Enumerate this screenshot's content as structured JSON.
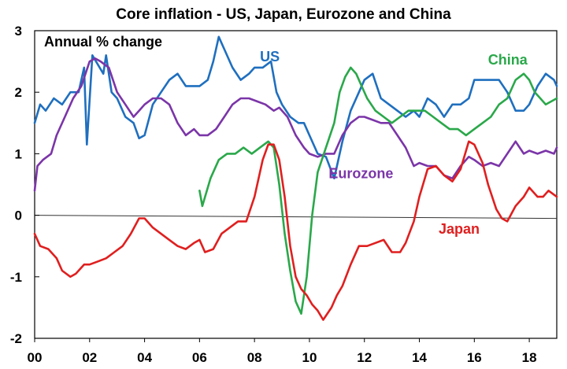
{
  "chart_data": {
    "type": "line",
    "title": "Core inflation - US, Japan, Eurozone and China",
    "ylabel": "Annual % change",
    "xlim": [
      2000,
      2019
    ],
    "ylim": [
      -2,
      3
    ],
    "x_ticks": [
      {
        "v": 2000,
        "label": "00"
      },
      {
        "v": 2002,
        "label": "02"
      },
      {
        "v": 2004,
        "label": "04"
      },
      {
        "v": 2006,
        "label": "06"
      },
      {
        "v": 2008,
        "label": "08"
      },
      {
        "v": 2010,
        "label": "10"
      },
      {
        "v": 2012,
        "label": "12"
      },
      {
        "v": 2014,
        "label": "14"
      },
      {
        "v": 2016,
        "label": "16"
      },
      {
        "v": 2018,
        "label": "18"
      }
    ],
    "y_ticks": [
      -2,
      -1,
      0,
      1,
      2,
      3
    ],
    "grid": false,
    "zero_line": true,
    "legend": "inline labels",
    "series": [
      {
        "name": "US",
        "color": "#1f6fbf",
        "label_at": [
          2008.2,
          2.5
        ],
        "points": [
          [
            2000.0,
            1.5
          ],
          [
            2000.2,
            1.8
          ],
          [
            2000.4,
            1.7
          ],
          [
            2000.7,
            1.9
          ],
          [
            2001.0,
            1.8
          ],
          [
            2001.3,
            2.0
          ],
          [
            2001.6,
            2.0
          ],
          [
            2001.8,
            2.4
          ],
          [
            2001.9,
            1.15
          ],
          [
            2002.1,
            2.6
          ],
          [
            2002.5,
            2.3
          ],
          [
            2002.6,
            2.6
          ],
          [
            2002.8,
            2.0
          ],
          [
            2003.0,
            1.9
          ],
          [
            2003.3,
            1.6
          ],
          [
            2003.6,
            1.5
          ],
          [
            2003.8,
            1.25
          ],
          [
            2004.0,
            1.3
          ],
          [
            2004.3,
            1.8
          ],
          [
            2004.6,
            2.0
          ],
          [
            2004.9,
            2.2
          ],
          [
            2005.2,
            2.3
          ],
          [
            2005.5,
            2.1
          ],
          [
            2005.8,
            2.1
          ],
          [
            2006.0,
            2.1
          ],
          [
            2006.3,
            2.2
          ],
          [
            2006.5,
            2.5
          ],
          [
            2006.7,
            2.9
          ],
          [
            2006.9,
            2.7
          ],
          [
            2007.2,
            2.4
          ],
          [
            2007.5,
            2.2
          ],
          [
            2007.8,
            2.3
          ],
          [
            2008.0,
            2.4
          ],
          [
            2008.3,
            2.4
          ],
          [
            2008.6,
            2.5
          ],
          [
            2008.8,
            2.0
          ],
          [
            2009.0,
            1.8
          ],
          [
            2009.3,
            1.6
          ],
          [
            2009.6,
            1.5
          ],
          [
            2009.8,
            1.5
          ],
          [
            2010.0,
            1.3
          ],
          [
            2010.3,
            1.0
          ],
          [
            2010.6,
            0.95
          ],
          [
            2010.9,
            0.6
          ],
          [
            2011.2,
            1.2
          ],
          [
            2011.5,
            1.7
          ],
          [
            2011.8,
            2.0
          ],
          [
            2012.0,
            2.2
          ],
          [
            2012.3,
            2.3
          ],
          [
            2012.6,
            1.9
          ],
          [
            2012.9,
            1.8
          ],
          [
            2013.2,
            1.7
          ],
          [
            2013.5,
            1.6
          ],
          [
            2013.8,
            1.7
          ],
          [
            2014.0,
            1.6
          ],
          [
            2014.3,
            1.9
          ],
          [
            2014.6,
            1.8
          ],
          [
            2014.9,
            1.6
          ],
          [
            2015.2,
            1.8
          ],
          [
            2015.5,
            1.8
          ],
          [
            2015.8,
            1.9
          ],
          [
            2016.0,
            2.2
          ],
          [
            2016.3,
            2.2
          ],
          [
            2016.6,
            2.2
          ],
          [
            2016.9,
            2.2
          ],
          [
            2017.2,
            2.0
          ],
          [
            2017.5,
            1.7
          ],
          [
            2017.8,
            1.7
          ],
          [
            2018.0,
            1.8
          ],
          [
            2018.3,
            2.1
          ],
          [
            2018.6,
            2.3
          ],
          [
            2018.9,
            2.2
          ],
          [
            2019.0,
            2.1
          ]
        ]
      },
      {
        "name": "Eurozone",
        "color": "#7b35a8",
        "label_at": [
          2010.7,
          0.6
        ],
        "points": [
          [
            2000.0,
            0.4
          ],
          [
            2000.1,
            0.8
          ],
          [
            2000.3,
            0.9
          ],
          [
            2000.6,
            1.0
          ],
          [
            2000.8,
            1.3
          ],
          [
            2001.1,
            1.6
          ],
          [
            2001.4,
            1.9
          ],
          [
            2001.7,
            2.1
          ],
          [
            2002.0,
            2.5
          ],
          [
            2002.2,
            2.55
          ],
          [
            2002.4,
            2.5
          ],
          [
            2002.7,
            2.4
          ],
          [
            2003.0,
            2.0
          ],
          [
            2003.3,
            1.8
          ],
          [
            2003.6,
            1.6
          ],
          [
            2003.8,
            1.7
          ],
          [
            2004.0,
            1.8
          ],
          [
            2004.3,
            1.9
          ],
          [
            2004.6,
            1.9
          ],
          [
            2004.9,
            1.8
          ],
          [
            2005.2,
            1.5
          ],
          [
            2005.5,
            1.3
          ],
          [
            2005.8,
            1.4
          ],
          [
            2006.0,
            1.3
          ],
          [
            2006.3,
            1.3
          ],
          [
            2006.6,
            1.4
          ],
          [
            2006.9,
            1.6
          ],
          [
            2007.2,
            1.8
          ],
          [
            2007.5,
            1.9
          ],
          [
            2007.8,
            1.9
          ],
          [
            2008.1,
            1.85
          ],
          [
            2008.4,
            1.8
          ],
          [
            2008.7,
            1.7
          ],
          [
            2008.9,
            1.75
          ],
          [
            2009.2,
            1.6
          ],
          [
            2009.5,
            1.3
          ],
          [
            2009.8,
            1.1
          ],
          [
            2010.0,
            1.0
          ],
          [
            2010.3,
            0.95
          ],
          [
            2010.6,
            1.0
          ],
          [
            2010.9,
            1.0
          ],
          [
            2011.2,
            1.3
          ],
          [
            2011.5,
            1.5
          ],
          [
            2011.8,
            1.6
          ],
          [
            2012.0,
            1.6
          ],
          [
            2012.3,
            1.55
          ],
          [
            2012.6,
            1.5
          ],
          [
            2012.9,
            1.5
          ],
          [
            2013.2,
            1.3
          ],
          [
            2013.5,
            1.1
          ],
          [
            2013.8,
            0.8
          ],
          [
            2014.0,
            0.85
          ],
          [
            2014.3,
            0.8
          ],
          [
            2014.6,
            0.8
          ],
          [
            2014.9,
            0.65
          ],
          [
            2015.2,
            0.6
          ],
          [
            2015.5,
            0.8
          ],
          [
            2015.8,
            0.95
          ],
          [
            2016.0,
            0.9
          ],
          [
            2016.3,
            0.8
          ],
          [
            2016.6,
            0.85
          ],
          [
            2016.9,
            0.8
          ],
          [
            2017.2,
            1.0
          ],
          [
            2017.5,
            1.2
          ],
          [
            2017.8,
            1.0
          ],
          [
            2018.0,
            1.05
          ],
          [
            2018.3,
            1.0
          ],
          [
            2018.6,
            1.05
          ],
          [
            2018.9,
            1.0
          ],
          [
            2019.0,
            1.1
          ]
        ]
      },
      {
        "name": "China",
        "color": "#2aa84a",
        "label_at": [
          2016.5,
          2.45
        ],
        "points": [
          [
            2006.0,
            0.4
          ],
          [
            2006.1,
            0.15
          ],
          [
            2006.4,
            0.6
          ],
          [
            2006.7,
            0.9
          ],
          [
            2007.0,
            1.0
          ],
          [
            2007.3,
            1.0
          ],
          [
            2007.6,
            1.1
          ],
          [
            2007.9,
            1.0
          ],
          [
            2008.2,
            1.1
          ],
          [
            2008.5,
            1.2
          ],
          [
            2008.7,
            1.1
          ],
          [
            2008.9,
            0.5
          ],
          [
            2009.1,
            -0.3
          ],
          [
            2009.3,
            -0.9
          ],
          [
            2009.5,
            -1.4
          ],
          [
            2009.7,
            -1.6
          ],
          [
            2009.9,
            -1.0
          ],
          [
            2010.1,
            0.0
          ],
          [
            2010.3,
            0.7
          ],
          [
            2010.6,
            1.1
          ],
          [
            2010.9,
            1.5
          ],
          [
            2011.1,
            2.0
          ],
          [
            2011.3,
            2.25
          ],
          [
            2011.5,
            2.4
          ],
          [
            2011.7,
            2.3
          ],
          [
            2011.9,
            2.1
          ],
          [
            2012.1,
            1.9
          ],
          [
            2012.4,
            1.7
          ],
          [
            2012.7,
            1.6
          ],
          [
            2013.0,
            1.5
          ],
          [
            2013.3,
            1.6
          ],
          [
            2013.6,
            1.7
          ],
          [
            2013.9,
            1.7
          ],
          [
            2014.2,
            1.7
          ],
          [
            2014.5,
            1.6
          ],
          [
            2014.8,
            1.5
          ],
          [
            2015.1,
            1.4
          ],
          [
            2015.4,
            1.4
          ],
          [
            2015.7,
            1.3
          ],
          [
            2016.0,
            1.4
          ],
          [
            2016.3,
            1.5
          ],
          [
            2016.6,
            1.6
          ],
          [
            2016.9,
            1.8
          ],
          [
            2017.2,
            1.9
          ],
          [
            2017.5,
            2.2
          ],
          [
            2017.8,
            2.3
          ],
          [
            2018.0,
            2.2
          ],
          [
            2018.2,
            2.0
          ],
          [
            2018.4,
            1.9
          ],
          [
            2018.6,
            1.8
          ],
          [
            2018.8,
            1.85
          ],
          [
            2019.0,
            1.9
          ]
        ]
      },
      {
        "name": "Japan",
        "color": "#e01f1f",
        "label_at": [
          2014.7,
          -0.3
        ],
        "points": [
          [
            2000.0,
            -0.3
          ],
          [
            2000.2,
            -0.5
          ],
          [
            2000.5,
            -0.55
          ],
          [
            2000.8,
            -0.7
          ],
          [
            2001.0,
            -0.9
          ],
          [
            2001.3,
            -1.0
          ],
          [
            2001.5,
            -0.95
          ],
          [
            2001.8,
            -0.8
          ],
          [
            2002.0,
            -0.8
          ],
          [
            2002.3,
            -0.75
          ],
          [
            2002.6,
            -0.7
          ],
          [
            2002.9,
            -0.6
          ],
          [
            2003.2,
            -0.5
          ],
          [
            2003.5,
            -0.3
          ],
          [
            2003.8,
            -0.05
          ],
          [
            2004.0,
            -0.05
          ],
          [
            2004.3,
            -0.2
          ],
          [
            2004.6,
            -0.3
          ],
          [
            2004.9,
            -0.4
          ],
          [
            2005.2,
            -0.5
          ],
          [
            2005.5,
            -0.55
          ],
          [
            2005.8,
            -0.45
          ],
          [
            2006.0,
            -0.4
          ],
          [
            2006.2,
            -0.6
          ],
          [
            2006.5,
            -0.55
          ],
          [
            2006.8,
            -0.3
          ],
          [
            2007.1,
            -0.2
          ],
          [
            2007.4,
            -0.1
          ],
          [
            2007.7,
            -0.1
          ],
          [
            2008.0,
            0.3
          ],
          [
            2008.3,
            0.9
          ],
          [
            2008.5,
            1.15
          ],
          [
            2008.7,
            1.15
          ],
          [
            2008.9,
            0.9
          ],
          [
            2009.1,
            0.3
          ],
          [
            2009.3,
            -0.5
          ],
          [
            2009.5,
            -1.0
          ],
          [
            2009.7,
            -1.2
          ],
          [
            2009.9,
            -1.3
          ],
          [
            2010.1,
            -1.45
          ],
          [
            2010.3,
            -1.55
          ],
          [
            2010.5,
            -1.7
          ],
          [
            2010.8,
            -1.5
          ],
          [
            2011.0,
            -1.3
          ],
          [
            2011.2,
            -1.15
          ],
          [
            2011.5,
            -0.8
          ],
          [
            2011.8,
            -0.5
          ],
          [
            2012.1,
            -0.5
          ],
          [
            2012.4,
            -0.45
          ],
          [
            2012.7,
            -0.4
          ],
          [
            2013.0,
            -0.6
          ],
          [
            2013.3,
            -0.6
          ],
          [
            2013.5,
            -0.45
          ],
          [
            2013.8,
            -0.1
          ],
          [
            2014.0,
            0.3
          ],
          [
            2014.3,
            0.75
          ],
          [
            2014.6,
            0.8
          ],
          [
            2014.9,
            0.65
          ],
          [
            2015.2,
            0.55
          ],
          [
            2015.5,
            0.75
          ],
          [
            2015.8,
            1.2
          ],
          [
            2016.0,
            1.15
          ],
          [
            2016.3,
            0.85
          ],
          [
            2016.5,
            0.5
          ],
          [
            2016.8,
            0.1
          ],
          [
            2017.0,
            -0.05
          ],
          [
            2017.2,
            -0.1
          ],
          [
            2017.5,
            0.15
          ],
          [
            2017.8,
            0.3
          ],
          [
            2018.0,
            0.45
          ],
          [
            2018.3,
            0.3
          ],
          [
            2018.5,
            0.3
          ],
          [
            2018.7,
            0.4
          ],
          [
            2019.0,
            0.3
          ]
        ]
      }
    ]
  }
}
